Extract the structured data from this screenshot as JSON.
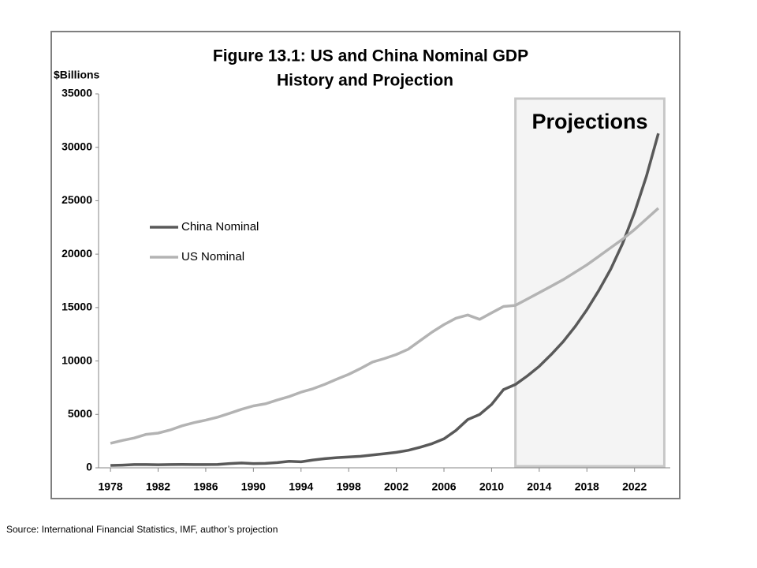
{
  "chart_data": {
    "type": "line",
    "title": "Figure 13.1: US and China Nominal GDP",
    "subtitle": "History and Projection",
    "y_label": "$Billions",
    "source": "Source: International Financial Statistics, IMF, author’s projection",
    "shaded_region": {
      "label": "Projections",
      "x": [
        2012,
        2024.5
      ]
    },
    "legend": "center-left",
    "grid": false,
    "x": [
      1978,
      1979,
      1980,
      1981,
      1982,
      1983,
      1984,
      1985,
      1986,
      1987,
      1988,
      1989,
      1990,
      1991,
      1992,
      1993,
      1994,
      1995,
      1996,
      1997,
      1998,
      1999,
      2000,
      2001,
      2002,
      2003,
      2004,
      2005,
      2006,
      2007,
      2008,
      2009,
      2010,
      2011,
      2012,
      2013,
      2014,
      2015,
      2016,
      2017,
      2018,
      2019,
      2020,
      2021,
      2022,
      2023,
      2024
    ],
    "xlim": [
      1977,
      2025
    ],
    "xticks": [
      1978,
      1982,
      1986,
      1990,
      1994,
      1998,
      2002,
      2006,
      2010,
      2014,
      2018,
      2022
    ],
    "ylim": [
      0,
      35000
    ],
    "yticks": [
      0,
      5000,
      10000,
      15000,
      20000,
      25000,
      30000,
      35000
    ],
    "series": [
      {
        "name": "China Nominal",
        "color": "#595959",
        "values": [
          220,
          250,
          300,
          300,
          290,
          300,
          310,
          300,
          300,
          320,
          400,
          450,
          400,
          410,
          490,
          610,
          560,
          730,
          860,
          950,
          1020,
          1080,
          1200,
          1320,
          1450,
          1640,
          1930,
          2260,
          2710,
          3490,
          4520,
          4990,
          5930,
          7320,
          7800,
          8600,
          9500,
          10600,
          11800,
          13200,
          14800,
          16600,
          18600,
          21000,
          23900,
          27300,
          31300
        ]
      },
      {
        "name": "US Nominal",
        "color": "#b3b3b3",
        "values": [
          2300,
          2560,
          2790,
          3130,
          3250,
          3540,
          3930,
          4220,
          4460,
          4740,
          5100,
          5480,
          5800,
          5990,
          6340,
          6670,
          7080,
          7400,
          7820,
          8300,
          8750,
          9300,
          9900,
          10230,
          10600,
          11100,
          11900,
          12700,
          13400,
          14000,
          14300,
          13900,
          14500,
          15100,
          15200,
          15800,
          16400,
          17000,
          17600,
          18300,
          19000,
          19800,
          20600,
          21400,
          22300,
          23300,
          24300
        ]
      }
    ]
  }
}
